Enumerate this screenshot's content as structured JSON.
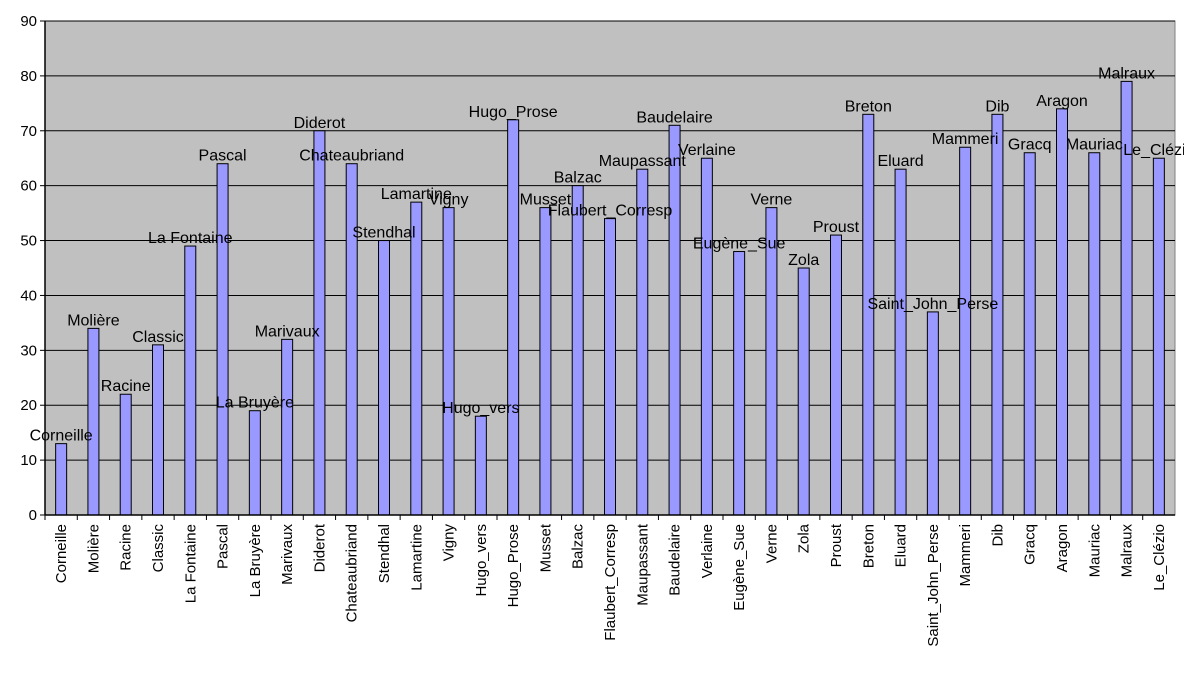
{
  "chart_data": {
    "type": "bar",
    "categories": [
      "Corneille",
      "Molière",
      "Racine",
      "Classic",
      "La Fontaine",
      "Pascal",
      "La Bruyère",
      "Marivaux",
      "Diderot",
      "Chateaubriand",
      "Stendhal",
      "Lamartine",
      "Vigny",
      "Hugo_vers",
      "Hugo_Prose",
      "Musset",
      "Balzac",
      "Flaubert_Corresp",
      "Maupassant",
      "Baudelaire",
      "Verlaine",
      "Eugène_Sue",
      "Verne",
      "Zola",
      "Proust",
      "Breton",
      "Eluard",
      "Saint_John_Perse",
      "Mammeri",
      "Dib",
      "Gracq",
      "Aragon",
      "Mauriac",
      "Malraux",
      "Le_Clézio"
    ],
    "values": [
      13,
      34,
      22,
      31,
      49,
      64,
      19,
      32,
      70,
      64,
      50,
      57,
      56,
      18,
      72,
      56,
      60,
      54,
      63,
      71,
      65,
      48,
      56,
      45,
      51,
      73,
      63,
      37,
      67,
      73,
      66,
      74,
      66,
      79,
      65
    ],
    "ylim": [
      0,
      90
    ],
    "yticks": [
      0,
      10,
      20,
      30,
      40,
      50,
      60,
      70,
      80,
      90
    ],
    "grid": true,
    "legend": "none",
    "bar_color": "#9999ff",
    "plot_background": "#c0c0c0"
  }
}
